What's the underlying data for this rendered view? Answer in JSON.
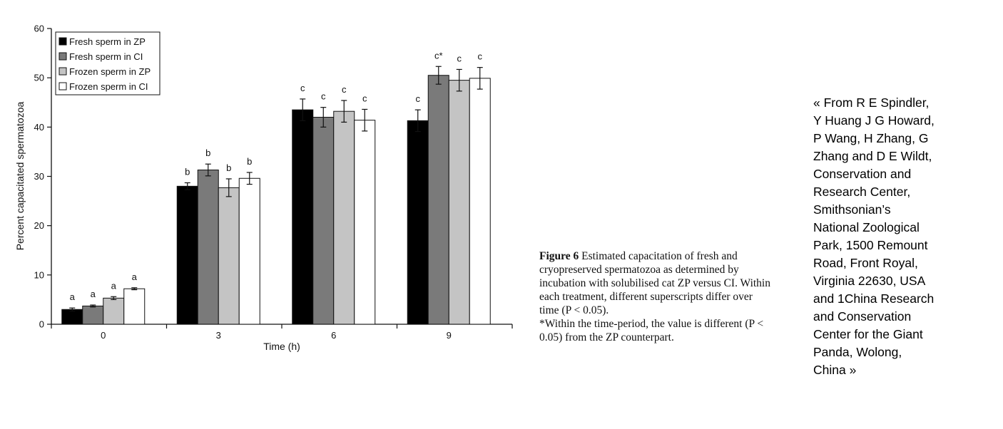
{
  "chart_data": {
    "type": "bar",
    "xlabel": "Time (h)",
    "ylabel": "Percent capacitated spermatozoa",
    "ylim": [
      0,
      60
    ],
    "yticks": [
      0,
      10,
      20,
      30,
      40,
      50,
      60
    ],
    "categories": [
      "0",
      "3",
      "6",
      "9"
    ],
    "legend_position": "top-left",
    "grid": false,
    "series": [
      {
        "name": "Fresh sperm in ZP",
        "color": "#000000",
        "values": [
          3.0,
          28.0,
          43.5,
          41.3
        ],
        "errors": [
          0.3,
          0.7,
          2.2,
          2.2
        ],
        "labels": [
          "a",
          "b",
          "c",
          "c"
        ]
      },
      {
        "name": "Fresh sperm in CI",
        "color": "#7a7a7a",
        "values": [
          3.7,
          31.3,
          42.0,
          50.5
        ],
        "errors": [
          0.2,
          1.2,
          2.0,
          1.8
        ],
        "labels": [
          "a",
          "b",
          "c",
          "c*"
        ]
      },
      {
        "name": "Frozen sperm in ZP",
        "color": "#c4c4c4",
        "values": [
          5.3,
          27.7,
          43.2,
          49.5
        ],
        "errors": [
          0.3,
          1.8,
          2.2,
          2.2
        ],
        "labels": [
          "a",
          "b",
          "c",
          "c"
        ]
      },
      {
        "name": "Frozen sperm in CI",
        "color": "#ffffff",
        "values": [
          7.2,
          29.6,
          41.4,
          49.9
        ],
        "errors": [
          0.2,
          1.2,
          2.2,
          2.2
        ],
        "labels": [
          "a",
          "b",
          "c",
          "c"
        ]
      }
    ]
  },
  "caption": {
    "figure_label": "Figure 6",
    "text": " Estimated capacitation of fresh and cryopreserved spermatozoa as determined by incubation with solubilised cat ZP versus CI. Within each treatment, different superscripts differ over time (P < 0.05).",
    "note": "*Within the time-period, the value is different (P < 0.05) from the ZP counterpart."
  },
  "credit": {
    "text": "« From R E Spindler,\nY Huang J G Howard,\nP Wang, H Zhang, G\nZhang and D E Wildt,\nConservation and\nResearch Center,\nSmithsonian’s\nNational Zoological\nPark, 1500 Remount\nRoad, Front Royal,\nVirginia 22630, USA\nand 1China Research\nand Conservation\nCenter for the Giant\nPanda, Wolong,\nChina »"
  }
}
